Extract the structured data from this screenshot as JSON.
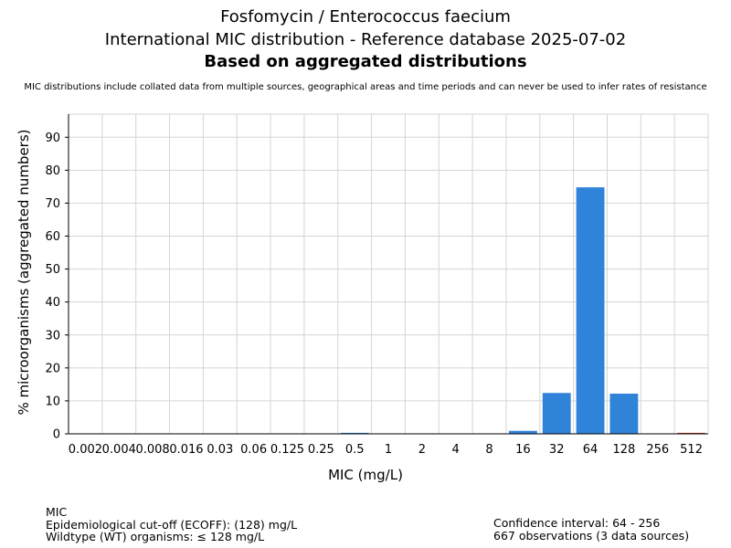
{
  "header": {
    "title": "Fosfomycin / Enterococcus faecium",
    "subtitle": "International MIC distribution - Reference database 2025-07-02",
    "heading": "Based on aggregated distributions",
    "note": "MIC distributions include collated data from multiple sources, geographical areas and time periods and can never be used to infer rates of resistance"
  },
  "chart_data": {
    "type": "bar",
    "xlabel": "MIC (mg/L)",
    "ylabel": "% microorganisms (aggregated numbers)",
    "ylim": [
      0,
      97
    ],
    "yticks": [
      0,
      10,
      20,
      30,
      40,
      50,
      60,
      70,
      80,
      90
    ],
    "grid": true,
    "categories": [
      "0.002",
      "0.004",
      "0.008",
      "0.016",
      "0.03",
      "0.06",
      "0.125",
      "0.25",
      "0.5",
      "1",
      "2",
      "4",
      "8",
      "16",
      "32",
      "64",
      "128",
      "256",
      "512"
    ],
    "values": [
      0,
      0,
      0,
      0,
      0,
      0,
      0,
      0,
      0.3,
      0,
      0,
      0,
      0,
      0.9,
      12.4,
      74.8,
      12.2,
      0,
      0.3
    ],
    "colors": [
      "#2f83d9",
      "#2f83d9",
      "#2f83d9",
      "#2f83d9",
      "#2f83d9",
      "#2f83d9",
      "#2f83d9",
      "#2f83d9",
      "#2f83d9",
      "#2f83d9",
      "#2f83d9",
      "#2f83d9",
      "#2f83d9",
      "#2f83d9",
      "#2f83d9",
      "#2f83d9",
      "#2f83d9",
      "#2f83d9",
      "#c0392b"
    ]
  },
  "footer": {
    "left": [
      "MIC",
      "Epidemiological cut-off (ECOFF): (128) mg/L",
      "Wildtype (WT) organisms: ≤ 128 mg/L"
    ],
    "right": [
      "Confidence interval: 64 - 256",
      "667 observations (3 data sources)"
    ]
  }
}
